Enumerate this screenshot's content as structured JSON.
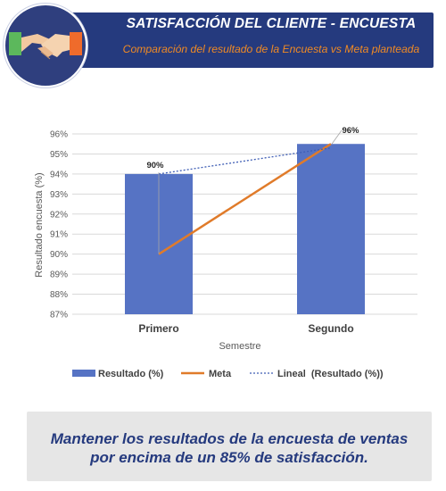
{
  "header": {
    "title": "SATISFACCIÓN DEL CLIENTE - ENCUESTA",
    "subtitle": "Comparación del resultado de la Encuesta vs Meta planteada",
    "logo_icon": "handshake-icon"
  },
  "colors": {
    "banner": "#253a7e",
    "subtitle": "#f08a24",
    "bar": "#5673c4",
    "meta_line": "#e07b2a",
    "trend_line": "#3f5eb5",
    "footer_bg": "#e6e6e6",
    "footer_text": "#253a7e"
  },
  "chart_data": {
    "type": "bar",
    "categories": [
      "Primero",
      "Segundo"
    ],
    "series": [
      {
        "name": "Resultado (%)",
        "type": "bar",
        "values": [
          94,
          95.5
        ]
      },
      {
        "name": "Meta",
        "type": "line",
        "values": [
          90,
          95.5
        ]
      },
      {
        "name": "Lineal  (Resultado (%))",
        "type": "trendline",
        "values": [
          94,
          95.3
        ]
      }
    ],
    "data_labels": [
      {
        "category": "Primero",
        "text": "90%"
      },
      {
        "category": "Segundo",
        "text": "96%"
      }
    ],
    "xlabel": "Semestre",
    "ylabel": "Resultado encuesta (%)",
    "ylim": [
      87,
      96
    ],
    "yticks": [
      "87%",
      "88%",
      "89%",
      "90%",
      "91%",
      "92%",
      "93%",
      "94%",
      "95%",
      "96%"
    ],
    "grid": true,
    "legend": "bottom"
  },
  "footer": {
    "line1": "Mantener los resultados de la encuesta de ventas",
    "line2": "por encima de un 85% de satisfacción."
  }
}
